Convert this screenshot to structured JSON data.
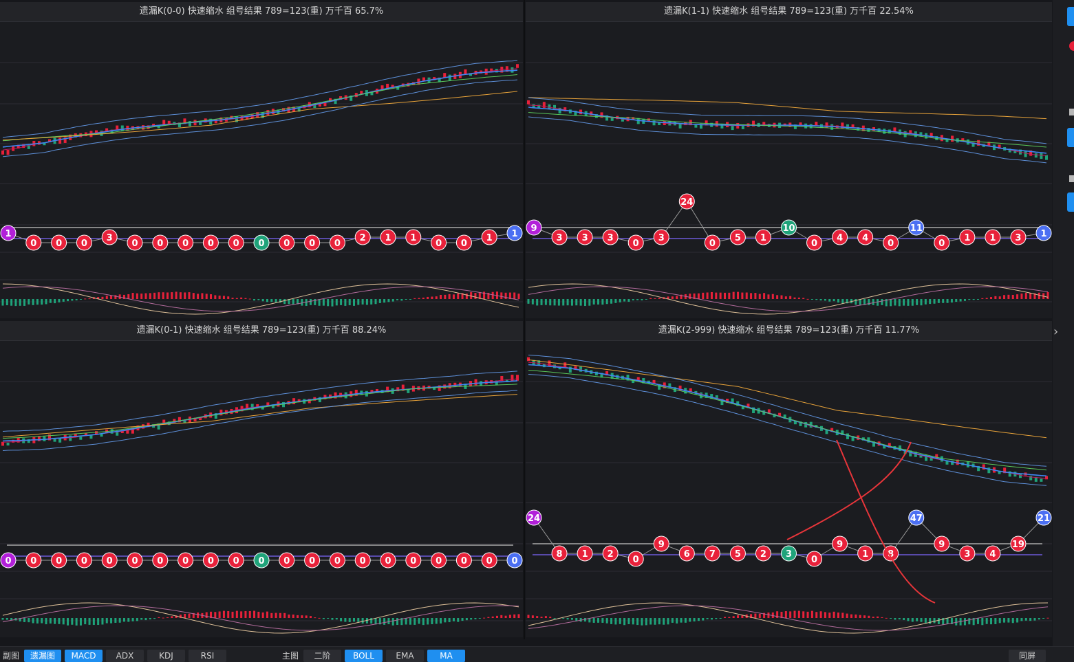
{
  "panels": [
    {
      "title": "遗漏K(0-0)  快速缩水  组号结果 789=123(重)  万千百  65.7%"
    },
    {
      "title": "遗漏K(1-1)  快速缩水  组号结果 789=123(重)  万千百  22.54%"
    },
    {
      "title": "遗漏K(0-1)  快速缩水  组号结果 789=123(重)  万千百  88.24%"
    },
    {
      "title": "遗漏K(2-999)  快速缩水  组号结果 789=123(重)  万千百  11.77%"
    }
  ],
  "toolbar": {
    "sub_label": "副图",
    "sub_buttons": [
      "遗漏图",
      "MACD",
      "ADX",
      "KDJ",
      "RSI"
    ],
    "main_label": "主图",
    "main_buttons": [
      "二阶",
      "BOLL",
      "EMA",
      "MA"
    ],
    "right_button": "同屏"
  },
  "colors": {
    "red": "#e8213a",
    "green": "#1fa37a",
    "blue": "#4b6ff2",
    "purple": "#b21fd9",
    "accent": "#1f8ff0"
  },
  "omission_nodes": [
    [
      "1",
      "0",
      "0",
      "0",
      "3",
      "0",
      "0",
      "0",
      "0",
      "0",
      "0",
      "0",
      "0",
      "0",
      "2",
      "1",
      "1",
      "0",
      "0",
      "1",
      "1"
    ],
    [
      "9",
      "3",
      "3",
      "3",
      "0",
      "3",
      "24",
      "0",
      "5",
      "1",
      "10",
      "0",
      "4",
      "4",
      "0",
      "11",
      "0",
      "1",
      "1",
      "3",
      "1"
    ],
    [
      "0",
      "0",
      "0",
      "0",
      "0",
      "0",
      "0",
      "0",
      "0",
      "0",
      "0",
      "0",
      "0",
      "0",
      "0",
      "0",
      "0",
      "0",
      "0",
      "0",
      "0"
    ],
    [
      "24",
      "8",
      "1",
      "2",
      "0",
      "9",
      "6",
      "7",
      "5",
      "2",
      "3",
      "0",
      "9",
      "1",
      "8",
      "47",
      "9",
      "3",
      "4",
      "19",
      "21"
    ]
  ]
}
